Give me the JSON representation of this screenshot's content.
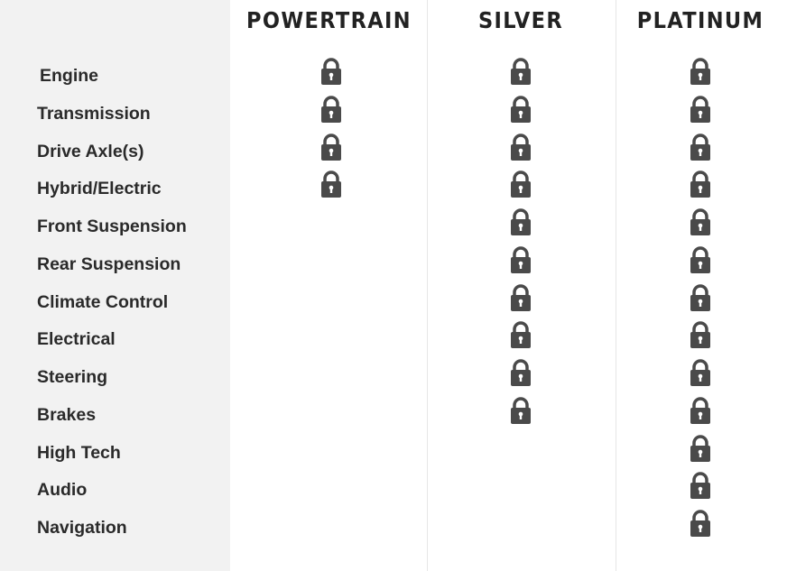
{
  "columns": [
    "POWERTRAIN",
    "SILVER",
    "PLATINUM"
  ],
  "rows": [
    {
      "label": "Engine",
      "covered": [
        true,
        true,
        true
      ]
    },
    {
      "label": "Transmission",
      "covered": [
        true,
        true,
        true
      ]
    },
    {
      "label": "Drive Axle(s)",
      "covered": [
        true,
        true,
        true
      ]
    },
    {
      "label": "Hybrid/Electric",
      "covered": [
        true,
        true,
        true
      ]
    },
    {
      "label": "Front Suspension",
      "covered": [
        false,
        true,
        true
      ]
    },
    {
      "label": "Rear Suspension",
      "covered": [
        false,
        true,
        true
      ]
    },
    {
      "label": "Climate Control",
      "covered": [
        false,
        true,
        true
      ]
    },
    {
      "label": "Electrical",
      "covered": [
        false,
        true,
        true
      ]
    },
    {
      "label": "Steering",
      "covered": [
        false,
        true,
        true
      ]
    },
    {
      "label": "Brakes",
      "covered": [
        false,
        true,
        true
      ]
    },
    {
      "label": "High Tech",
      "covered": [
        false,
        false,
        true
      ]
    },
    {
      "label": "Audio",
      "covered": [
        false,
        false,
        true
      ]
    },
    {
      "label": "Navigation",
      "covered": [
        false,
        false,
        true
      ]
    }
  ],
  "icon": "lock-icon",
  "colors": {
    "lock": "#4a4a4a",
    "sidebar": "#f2f2f2"
  }
}
